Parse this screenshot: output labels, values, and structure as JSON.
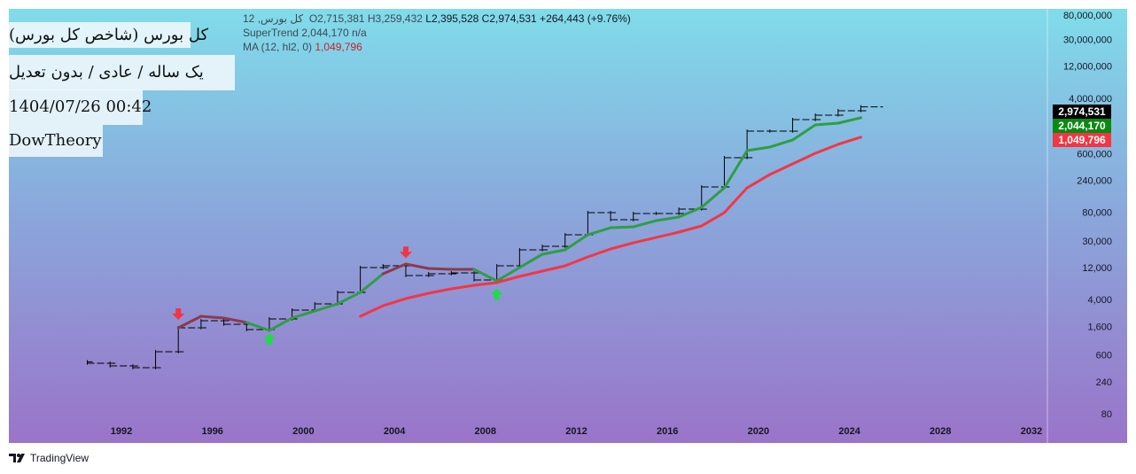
{
  "legend": {
    "symbol": "کل بورس, 12",
    "ohlc": "O2,715,381  H3,259,432",
    "rest": "L2,395,528  C2,974,531  +264,443 (+9.76%)",
    "indicator1": "SuperTrend 2,044,170 n/a",
    "indicator2_name": "MA (12, hl2, 0)",
    "indicator2_value": "1,049,796"
  },
  "overlays": {
    "title": "کل بورس (شاخص کل بورس)",
    "subtitle": "یک ساله / عادی / بدون تعدیل",
    "datetime": "1404/07/26 00:42",
    "author": "DowTheory"
  },
  "price_tags": [
    {
      "label": "2,974,531",
      "color": "#000000"
    },
    {
      "label": "2,044,170",
      "color": "#0a8a12"
    },
    {
      "label": "1,049,796",
      "color": "#f23645"
    }
  ],
  "footer": {
    "brand": "TradingView"
  },
  "chart_data": {
    "type": "line",
    "yscale": "log",
    "ylim": [
      80,
      80000000
    ],
    "xlim": [
      1989.5,
      2034.2
    ],
    "x_ticks": [
      "1992",
      "1996",
      "2000",
      "2004",
      "2008",
      "2012",
      "2016",
      "2020",
      "2024",
      "2028",
      "2032"
    ],
    "y_ticks": [
      "80,000,000",
      "30,000,000",
      "12,000,000",
      "4,000,000",
      "600,000",
      "240,000",
      "80,000",
      "30,000",
      "12,000",
      "4,000",
      "1,600",
      "600",
      "240",
      "80"
    ],
    "y_tick_values": [
      80000000,
      30000000,
      12000000,
      4000000,
      600000,
      240000,
      80000,
      30000,
      12000,
      4000,
      1600,
      600,
      240,
      80
    ],
    "ohlc": {
      "years": [
        1991,
        1992,
        1993,
        1994,
        1995,
        1996,
        1997,
        1998,
        1999,
        2000,
        2001,
        2002,
        2003,
        2004,
        2005,
        2006,
        2007,
        2008,
        2009,
        2010,
        2011,
        2012,
        2013,
        2014,
        2015,
        2016,
        2017,
        2018,
        2019,
        2020,
        2021,
        2022,
        2023,
        2024,
        2025
      ],
      "close": [
        452,
        412,
        388,
        670,
        1524,
        1941,
        1718,
        1432,
        2065,
        2798,
        3459,
        5130,
        12020,
        12770,
        9140,
        9710,
        10020,
        7850,
        12770,
        22080,
        24890,
        36980,
        79070,
        61940,
        76740,
        76740,
        89130,
        190500,
        520000,
        1291000,
        1291000,
        1919000,
        2234000,
        2600000,
        2974531
      ]
    },
    "series": [
      {
        "name": "SuperTrend",
        "color": "#2e9e44",
        "alt_color": "#8b3a4f",
        "years": [
          1995,
          1996,
          1997,
          1998,
          1999,
          2000,
          2001,
          2002,
          2003,
          2004,
          2005,
          2006,
          2007,
          2008,
          2009,
          2010,
          2011,
          2012,
          2013,
          2014,
          2015,
          2016,
          2017,
          2018,
          2019,
          2020,
          2021,
          2022,
          2023,
          2024,
          2025
        ],
        "values": [
          1524,
          2260,
          2128,
          1828,
          1390,
          2128,
          2711,
          3459,
          5130,
          9710,
          13580,
          11670,
          11300,
          11300,
          7620,
          12020,
          18970,
          22080,
          36980,
          47100,
          48600,
          60100,
          67900,
          94800,
          184900,
          662000,
          748000,
          955000,
          1600000,
          1700000,
          2044170
        ],
        "bearish": [
          1,
          1,
          1,
          1,
          0,
          0,
          0,
          0,
          0,
          1,
          1,
          1,
          1,
          1,
          0,
          0,
          0,
          0,
          0,
          0,
          0,
          0,
          0,
          0,
          0,
          0,
          0,
          0,
          0,
          0,
          0
        ]
      },
      {
        "name": "MA (12, hl2, 0)",
        "color": "#f23645",
        "years": [
          2003,
          2004,
          2005,
          2006,
          2007,
          2008,
          2009,
          2010,
          2011,
          2012,
          2013,
          2014,
          2015,
          2016,
          2017,
          2018,
          2019,
          2020,
          2021,
          2022,
          2023,
          2024,
          2025
        ],
        "values": [
          2260,
          3250,
          4150,
          4980,
          5800,
          6550,
          7180,
          8870,
          10640,
          12770,
          17300,
          22750,
          28100,
          33700,
          40500,
          50100,
          79070,
          184900,
          292000,
          420000,
          605000,
          820000,
          1049796
        ]
      }
    ],
    "signals": [
      {
        "year": 1995,
        "type": "sell",
        "value": 2400
      },
      {
        "year": 2005,
        "type": "sell",
        "value": 20000
      },
      {
        "year": 1999,
        "type": "buy",
        "value": 1050
      },
      {
        "year": 2009,
        "type": "buy",
        "value": 4900
      }
    ]
  }
}
